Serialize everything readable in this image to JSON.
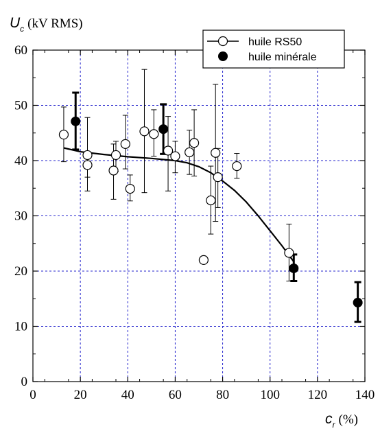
{
  "chart_data": {
    "type": "scatter",
    "title": "",
    "ylabel_symbol": "U",
    "ylabel_sub": "c",
    "ylabel_unit": "(kV RMS)",
    "xlabel_symbol": "c",
    "xlabel_sub": "r",
    "xlabel_unit": "(%)",
    "xlim": [
      0,
      140
    ],
    "ylim": [
      0,
      60
    ],
    "xticks": [
      0,
      20,
      40,
      60,
      80,
      100,
      120,
      140
    ],
    "yticks": [
      0,
      10,
      20,
      30,
      40,
      50,
      60
    ],
    "grid": true,
    "legend_position": "top-right",
    "series": [
      {
        "name": "huile RS50",
        "marker": "open-circle",
        "points": [
          {
            "x": 13,
            "y": 44.7,
            "err_low": 39.8,
            "err_high": 49.7
          },
          {
            "x": 23,
            "y": 39.2,
            "err_low": 34.5,
            "err_high": 41.5
          },
          {
            "x": 23,
            "y": 41.0,
            "err_low": 37.0,
            "err_high": 47.8
          },
          {
            "x": 34,
            "y": 38.2,
            "err_low": 33.0,
            "err_high": 43.0
          },
          {
            "x": 35,
            "y": 41.0,
            "err_low": 38.0,
            "err_high": 43.5
          },
          {
            "x": 39,
            "y": 43.0,
            "err_low": 38.5,
            "err_high": 48.2
          },
          {
            "x": 41,
            "y": 34.9,
            "err_low": 32.7,
            "err_high": 37.4
          },
          {
            "x": 47,
            "y": 45.3,
            "err_low": 34.2,
            "err_high": 56.5
          },
          {
            "x": 51,
            "y": 44.8,
            "err_low": 40.8,
            "err_high": 49.2
          },
          {
            "x": 57,
            "y": 41.8,
            "err_low": 34.5,
            "err_high": 48.0
          },
          {
            "x": 60,
            "y": 40.8,
            "err_low": 37.8,
            "err_high": 43.5
          },
          {
            "x": 66,
            "y": 41.5,
            "err_low": 37.5,
            "err_high": 45.5
          },
          {
            "x": 68,
            "y": 43.2,
            "err_low": 37.2,
            "err_high": 49.2
          },
          {
            "x": 72,
            "y": 22.0,
            "err_low": 21.4,
            "err_high": 22.6
          },
          {
            "x": 75,
            "y": 32.8,
            "err_low": 26.7,
            "err_high": 39.0
          },
          {
            "x": 77,
            "y": 41.4,
            "err_low": 29.0,
            "err_high": 53.8
          },
          {
            "x": 78,
            "y": 37.0,
            "err_low": 31.5,
            "err_high": 42.2
          },
          {
            "x": 86,
            "y": 39.0,
            "err_low": 36.8,
            "err_high": 41.3
          },
          {
            "x": 108,
            "y": 23.3,
            "err_low": 18.2,
            "err_high": 28.5
          }
        ]
      },
      {
        "name": "huile minérale",
        "marker": "filled-circle",
        "points": [
          {
            "x": 18,
            "y": 47.1,
            "err_low": 42.0,
            "err_high": 52.3
          },
          {
            "x": 55,
            "y": 45.7,
            "err_low": 41.2,
            "err_high": 50.2
          },
          {
            "x": 110,
            "y": 20.5,
            "err_low": 18.2,
            "err_high": 23.0
          },
          {
            "x": 137,
            "y": 14.3,
            "err_low": 10.8,
            "err_high": 18.0
          }
        ]
      }
    ],
    "fit_curve": {
      "x": [
        13,
        20,
        30,
        40,
        50,
        60,
        65,
        70,
        75,
        80,
        85,
        90,
        95,
        100,
        105,
        110
      ],
      "y": [
        42.3,
        41.6,
        41.1,
        40.7,
        40.4,
        40.0,
        39.6,
        38.9,
        37.8,
        36.3,
        34.6,
        32.5,
        30.0,
        27.3,
        24.6,
        21.7
      ]
    }
  }
}
